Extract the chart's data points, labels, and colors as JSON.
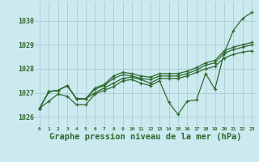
{
  "bg_color": "#cce9f0",
  "line_color": "#2d6a2d",
  "grid_color": "#a0c8cc",
  "xlabel": "Graphe pression niveau de la mer (hPa)",
  "xlabel_fontsize": 7.5,
  "ylim": [
    1025.6,
    1030.8
  ],
  "xlim": [
    -0.5,
    23.5
  ],
  "yticks": [
    1026,
    1027,
    1028,
    1029,
    1030
  ],
  "xtick_labels": [
    "0",
    "1",
    "2",
    "3",
    "4",
    "5",
    "6",
    "7",
    "8",
    "9",
    "10",
    "11",
    "12",
    "13",
    "14",
    "15",
    "16",
    "17",
    "18",
    "19",
    "20",
    "21",
    "22",
    "23"
  ],
  "series": [
    [
      1026.35,
      1026.65,
      1026.95,
      1026.85,
      1026.5,
      1026.5,
      1026.95,
      1027.1,
      1027.25,
      1027.5,
      1027.55,
      1027.4,
      1027.3,
      1027.5,
      1026.6,
      1026.1,
      1026.65,
      1026.7,
      1027.8,
      1027.15,
      1028.65,
      1029.6,
      1030.1,
      1030.35
    ],
    [
      1026.35,
      1027.05,
      1027.1,
      1027.3,
      1026.75,
      1026.75,
      1027.0,
      1027.2,
      1027.4,
      1027.6,
      1027.65,
      1027.55,
      1027.4,
      1027.6,
      1027.6,
      1027.6,
      1027.7,
      1027.85,
      1028.0,
      1028.1,
      1028.45,
      1028.6,
      1028.7,
      1028.75
    ],
    [
      1026.35,
      1027.05,
      1027.1,
      1027.3,
      1026.75,
      1026.75,
      1027.15,
      1027.3,
      1027.6,
      1027.75,
      1027.7,
      1027.6,
      1027.55,
      1027.7,
      1027.7,
      1027.7,
      1027.8,
      1027.95,
      1028.15,
      1028.25,
      1028.65,
      1028.8,
      1028.9,
      1029.0
    ],
    [
      1026.35,
      1027.05,
      1027.1,
      1027.3,
      1026.75,
      1026.75,
      1027.2,
      1027.35,
      1027.7,
      1027.85,
      1027.8,
      1027.7,
      1027.65,
      1027.8,
      1027.8,
      1027.8,
      1027.9,
      1028.05,
      1028.25,
      1028.35,
      1028.75,
      1028.9,
      1029.0,
      1029.1
    ]
  ],
  "marker": "+",
  "markersize": 3.5,
  "linewidth": 0.9,
  "markeredgewidth": 0.9
}
